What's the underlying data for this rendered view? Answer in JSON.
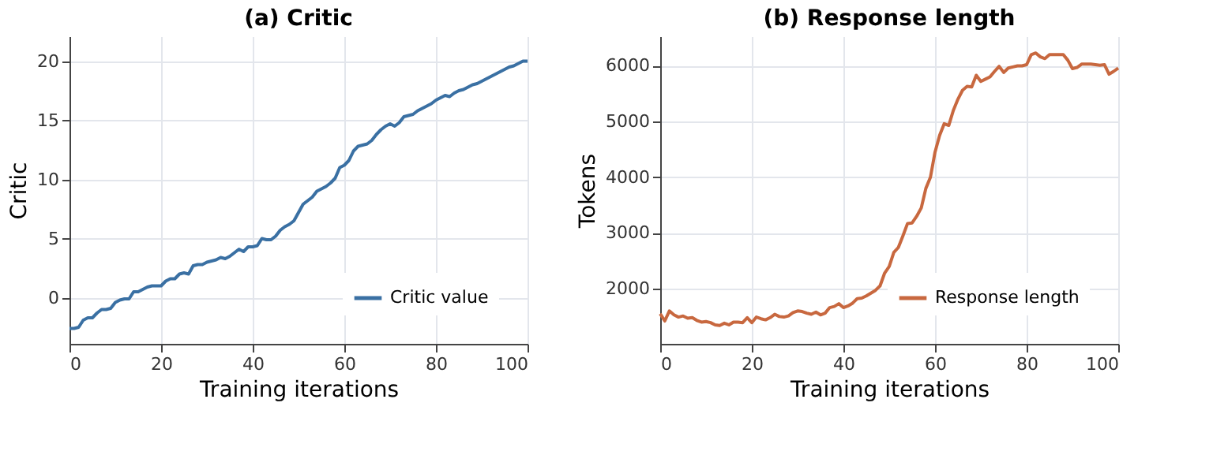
{
  "chart_data": [
    {
      "type": "line",
      "title": "(a) Critic",
      "xlabel": "Training iterations",
      "ylabel": "Critic",
      "xlim": [
        0,
        100
      ],
      "xticks": [
        0,
        20,
        40,
        60,
        80,
        100
      ],
      "ylim": [
        -3.9,
        22.1
      ],
      "yticks": [
        0,
        5,
        10,
        15,
        20
      ],
      "grid": true,
      "legend": "bottom right",
      "line_style": "solid",
      "marker": "none",
      "x": [
        0,
        1,
        2,
        3,
        4,
        5,
        6,
        7,
        8,
        9,
        10,
        11,
        12,
        13,
        14,
        15,
        16,
        17,
        18,
        19,
        20,
        21,
        22,
        23,
        24,
        25,
        26,
        27,
        28,
        29,
        30,
        31,
        32,
        33,
        34,
        35,
        36,
        37,
        38,
        39,
        40,
        41,
        42,
        43,
        44,
        45,
        46,
        47,
        48,
        49,
        50,
        51,
        52,
        53,
        54,
        55,
        56,
        57,
        58,
        59,
        60,
        61,
        62,
        63,
        64,
        65,
        66,
        67,
        68,
        69,
        70,
        71,
        72,
        73,
        74,
        75,
        76,
        77,
        78,
        79,
        80,
        81,
        82,
        83,
        84,
        85,
        86,
        87,
        88,
        89,
        90,
        91,
        92,
        93,
        94,
        95,
        96,
        97,
        98,
        99,
        100
      ],
      "series": [
        {
          "name": "Critic value",
          "color": "#3a70a3",
          "values": [
            -2.6,
            -2.6,
            -2.5,
            -1.9,
            -1.7,
            -1.7,
            -1.3,
            -1.0,
            -1.0,
            -0.9,
            -0.4,
            -0.2,
            -0.1,
            -0.1,
            0.5,
            0.5,
            0.7,
            0.9,
            1.0,
            1.0,
            1.0,
            1.4,
            1.6,
            1.6,
            2.0,
            2.1,
            2.0,
            2.7,
            2.8,
            2.8,
            3.0,
            3.1,
            3.2,
            3.4,
            3.3,
            3.5,
            3.8,
            4.1,
            3.9,
            4.3,
            4.3,
            4.4,
            5.0,
            4.9,
            4.9,
            5.2,
            5.7,
            6.0,
            6.2,
            6.5,
            7.2,
            7.9,
            8.2,
            8.5,
            9.0,
            9.2,
            9.4,
            9.7,
            10.1,
            11.0,
            11.2,
            11.6,
            12.4,
            12.8,
            12.9,
            13.0,
            13.3,
            13.8,
            14.2,
            14.5,
            14.7,
            14.5,
            14.8,
            15.3,
            15.4,
            15.5,
            15.8,
            16.0,
            16.2,
            16.4,
            16.7,
            16.9,
            17.1,
            17.0,
            17.3,
            17.5,
            17.6,
            17.8,
            18.0,
            18.1,
            18.3,
            18.5,
            18.7,
            18.9,
            19.1,
            19.3,
            19.5,
            19.6,
            19.8,
            20.0,
            20.0
          ]
        }
      ]
    },
    {
      "type": "line",
      "title": "(b) Response length",
      "xlabel": "Training iterations",
      "ylabel": "Tokens",
      "xlim": [
        0,
        100
      ],
      "xticks": [
        0,
        20,
        40,
        60,
        80,
        100
      ],
      "ylim": [
        1010,
        6530
      ],
      "yticks": [
        2000,
        3000,
        4000,
        5000,
        6000
      ],
      "grid": true,
      "legend": "bottom right",
      "line_style": "solid",
      "marker": "none",
      "x": [
        0,
        1,
        2,
        3,
        4,
        5,
        6,
        7,
        8,
        9,
        10,
        11,
        12,
        13,
        14,
        15,
        16,
        17,
        18,
        19,
        20,
        21,
        22,
        23,
        24,
        25,
        26,
        27,
        28,
        29,
        30,
        31,
        32,
        33,
        34,
        35,
        36,
        37,
        38,
        39,
        40,
        41,
        42,
        43,
        44,
        45,
        46,
        47,
        48,
        49,
        50,
        51,
        52,
        53,
        54,
        55,
        56,
        57,
        58,
        59,
        60,
        61,
        62,
        63,
        64,
        65,
        66,
        67,
        68,
        69,
        70,
        71,
        72,
        73,
        74,
        75,
        76,
        77,
        78,
        79,
        80,
        81,
        82,
        83,
        84,
        85,
        86,
        87,
        88,
        89,
        90,
        91,
        92,
        93,
        94,
        95,
        96,
        97,
        98,
        99,
        100
      ],
      "series": [
        {
          "name": "Response length",
          "color": "#c8683f",
          "values": [
            1550,
            1420,
            1600,
            1530,
            1490,
            1510,
            1470,
            1480,
            1430,
            1400,
            1410,
            1390,
            1350,
            1340,
            1380,
            1350,
            1400,
            1400,
            1390,
            1480,
            1390,
            1490,
            1460,
            1440,
            1480,
            1540,
            1500,
            1490,
            1510,
            1570,
            1600,
            1590,
            1560,
            1540,
            1580,
            1530,
            1560,
            1660,
            1680,
            1730,
            1660,
            1690,
            1740,
            1820,
            1830,
            1870,
            1920,
            1970,
            2050,
            2280,
            2400,
            2650,
            2740,
            2950,
            3170,
            3180,
            3300,
            3450,
            3800,
            4000,
            4450,
            4750,
            4960,
            4930,
            5200,
            5400,
            5560,
            5630,
            5620,
            5830,
            5720,
            5760,
            5800,
            5900,
            5990,
            5880,
            5960,
            5980,
            6000,
            6000,
            6020,
            6200,
            6230,
            6160,
            6130,
            6200,
            6200,
            6200,
            6200,
            6100,
            5950,
            5970,
            6030,
            6030,
            6030,
            6020,
            6010,
            6020,
            5850,
            5900,
            5960
          ]
        }
      ]
    }
  ]
}
